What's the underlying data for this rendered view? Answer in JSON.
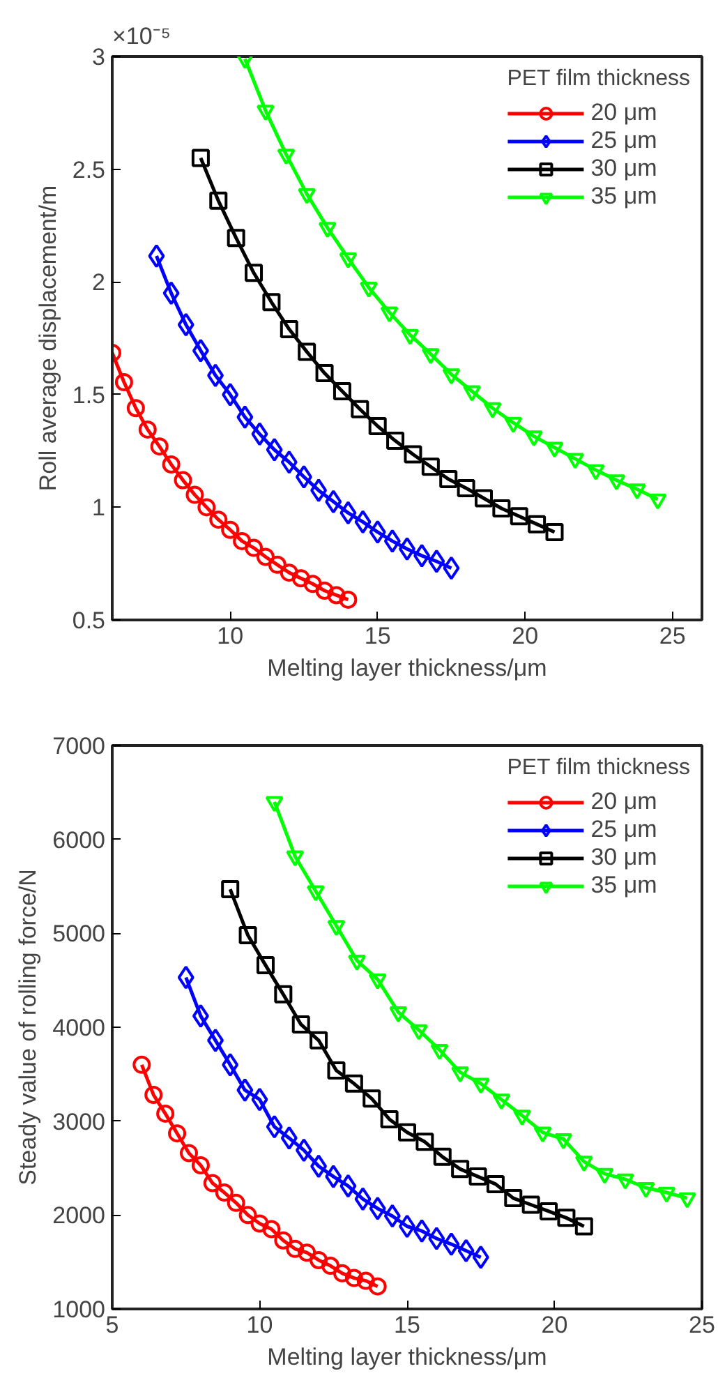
{
  "chart_data": [
    {
      "type": "line",
      "xlabel": "Melting layer thickness/μm",
      "ylabel": "Roll average displacement/m",
      "legend_title": "PET film thickness",
      "legend": "top right",
      "grid": false,
      "xlim": [
        6,
        26
      ],
      "ylim": [
        0.5,
        3
      ],
      "xticks": [
        10,
        15,
        20,
        25
      ],
      "yticks": [
        0.5,
        1,
        1.5,
        2,
        2.5,
        3
      ],
      "annotations": [
        "×10⁻⁵"
      ],
      "series": [
        {
          "name": "20 μm",
          "color": "#ff0000",
          "marker": "circle",
          "x": [
            6,
            6.4,
            6.8,
            7.2,
            7.6,
            8,
            8.4,
            8.8,
            9.2,
            9.6,
            10,
            10.4,
            10.8,
            11.2,
            11.6,
            12,
            12.4,
            12.8,
            13.2,
            13.6,
            14
          ],
          "values": [
            1.685,
            1.555,
            1.44,
            1.345,
            1.27,
            1.19,
            1.12,
            1.055,
            1.0,
            0.945,
            0.9,
            0.85,
            0.82,
            0.78,
            0.745,
            0.71,
            0.685,
            0.66,
            0.63,
            0.61,
            0.59
          ]
        },
        {
          "name": "25 μm",
          "color": "#0000ff",
          "marker": "diamond",
          "x": [
            7.5,
            8,
            8.5,
            9,
            9.5,
            10,
            10.5,
            11,
            11.5,
            12,
            12.5,
            13,
            13.5,
            14,
            14.5,
            15,
            15.5,
            16,
            16.5,
            17,
            17.5
          ],
          "values": [
            2.115,
            1.95,
            1.81,
            1.695,
            1.585,
            1.5,
            1.4,
            1.325,
            1.255,
            1.2,
            1.135,
            1.075,
            1.025,
            0.975,
            0.935,
            0.89,
            0.85,
            0.815,
            0.785,
            0.76,
            0.73
          ]
        },
        {
          "name": "30 μm",
          "color": "#000000",
          "marker": "square",
          "x": [
            9,
            9.6,
            10.2,
            10.8,
            11.4,
            12,
            12.6,
            13.2,
            13.8,
            14.4,
            15,
            15.6,
            16.2,
            16.8,
            17.4,
            18,
            18.6,
            19.2,
            19.8,
            20.4,
            21
          ],
          "values": [
            2.55,
            2.36,
            2.195,
            2.04,
            1.91,
            1.79,
            1.69,
            1.595,
            1.515,
            1.435,
            1.36,
            1.295,
            1.235,
            1.18,
            1.125,
            1.085,
            1.04,
            0.995,
            0.96,
            0.925,
            0.89
          ]
        },
        {
          "name": "35 μm",
          "color": "#00ff00",
          "marker": "triangle",
          "x": [
            10.5,
            11.2,
            11.9,
            12.6,
            13.3,
            14,
            14.7,
            15.4,
            16.1,
            16.8,
            17.5,
            18.2,
            18.9,
            19.6,
            20.3,
            21,
            21.7,
            22.4,
            23.1,
            23.8,
            24.5
          ],
          "values": [
            2.99,
            2.76,
            2.565,
            2.39,
            2.24,
            2.105,
            1.975,
            1.865,
            1.765,
            1.68,
            1.59,
            1.515,
            1.44,
            1.375,
            1.315,
            1.265,
            1.215,
            1.165,
            1.12,
            1.08,
            1.035
          ]
        }
      ]
    },
    {
      "type": "line",
      "xlabel": "Melting layer thickness/μm",
      "ylabel": "Steady value of rolling force/N",
      "legend_title": "PET film thickness",
      "legend": "top right",
      "grid": false,
      "xlim": [
        5,
        25
      ],
      "ylim": [
        1000,
        7000
      ],
      "xticks": [
        5,
        10,
        15,
        20,
        25
      ],
      "yticks": [
        1000,
        2000,
        3000,
        4000,
        5000,
        6000,
        7000
      ],
      "series": [
        {
          "name": "20 μm",
          "color": "#ff0000",
          "marker": "circle",
          "x": [
            6,
            6.4,
            6.8,
            7.2,
            7.6,
            8,
            8.4,
            8.8,
            9.2,
            9.6,
            10,
            10.4,
            10.8,
            11.2,
            11.6,
            12,
            12.4,
            12.8,
            13.2,
            13.6,
            14
          ],
          "values": [
            3600,
            3280,
            3080,
            2870,
            2660,
            2530,
            2340,
            2240,
            2130,
            2000,
            1910,
            1850,
            1730,
            1640,
            1600,
            1520,
            1460,
            1380,
            1330,
            1300,
            1240
          ]
        },
        {
          "name": "25 μm",
          "color": "#0000ff",
          "marker": "diamond",
          "x": [
            7.5,
            8,
            8.5,
            9,
            9.5,
            10,
            10.5,
            11,
            11.5,
            12,
            12.5,
            13,
            13.5,
            14,
            14.5,
            15,
            15.5,
            16,
            16.5,
            17,
            17.5
          ],
          "values": [
            4530,
            4120,
            3860,
            3600,
            3330,
            3230,
            2940,
            2820,
            2690,
            2520,
            2410,
            2310,
            2170,
            2070,
            1990,
            1880,
            1830,
            1750,
            1690,
            1620,
            1550
          ]
        },
        {
          "name": "30 μm",
          "color": "#000000",
          "marker": "square",
          "x": [
            9,
            9.6,
            10.2,
            10.8,
            11.4,
            12,
            12.6,
            13.2,
            13.8,
            14.4,
            15,
            15.6,
            16.2,
            16.8,
            17.4,
            18,
            18.6,
            19.2,
            19.8,
            20.4,
            21
          ],
          "values": [
            5470,
            4980,
            4660,
            4350,
            4030,
            3860,
            3540,
            3400,
            3240,
            3020,
            2880,
            2780,
            2620,
            2490,
            2410,
            2330,
            2180,
            2110,
            2040,
            1970,
            1880
          ]
        },
        {
          "name": "35 μm",
          "color": "#00ff00",
          "marker": "triangle",
          "x": [
            10.5,
            11.2,
            11.9,
            12.6,
            13.3,
            14,
            14.7,
            15.4,
            16.1,
            16.8,
            17.5,
            18.2,
            18.9,
            19.6,
            20.3,
            21,
            21.7,
            22.4,
            23.1,
            23.8,
            24.5
          ],
          "values": [
            6400,
            5820,
            5450,
            5080,
            4710,
            4510,
            4160,
            3970,
            3760,
            3520,
            3400,
            3230,
            3060,
            2880,
            2810,
            2570,
            2440,
            2380,
            2290,
            2240,
            2180
          ]
        }
      ]
    }
  ]
}
